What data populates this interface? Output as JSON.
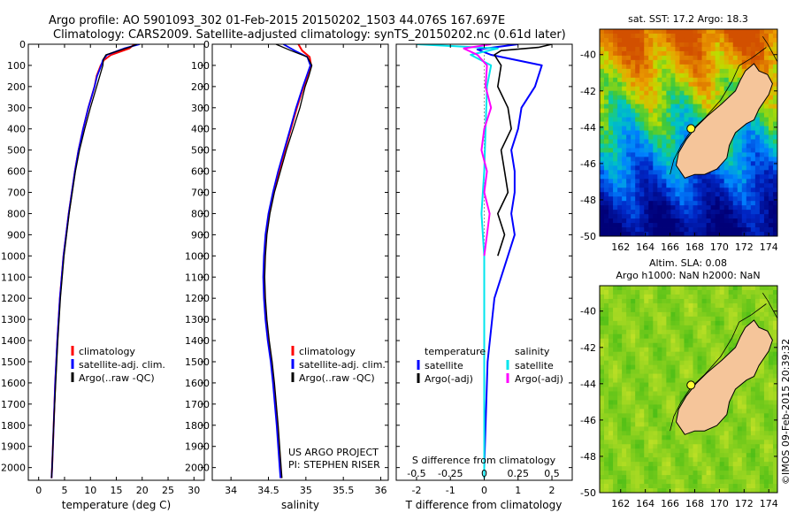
{
  "header": {
    "line1": "Argo profile: AO 5901093_302 01-Feb-2015 20150202_1503 44.076S 167.697E",
    "line2": "Climatology: CARS2009. Satellite-adjusted climatology: synTS_20150202.nc (0.61d later)"
  },
  "credit": {
    "line1": "US ARGO PROJECT",
    "line2": "PI: STEPHEN RISER"
  },
  "watermark": "©IMOS 09-Feb-2015 20:39:32",
  "colors": {
    "climatology": "#ff0000",
    "satellite": "#0000ff",
    "argo": "#000000",
    "sal_satellite": "#00e5ee",
    "sal_argo": "#ff00ff",
    "land": "#f5c59a"
  },
  "depth_axis": {
    "ticks": [
      0,
      100,
      200,
      300,
      400,
      500,
      600,
      700,
      800,
      900,
      1000,
      1100,
      1200,
      1300,
      1400,
      1500,
      1600,
      1700,
      1800,
      1900,
      2000
    ],
    "ylim": [
      0,
      2060
    ],
    "reversed": true
  },
  "chart_data": [
    {
      "type": "line",
      "xlabel": "temperature (deg C)",
      "xlim": [
        -2,
        32
      ],
      "xticks": [
        0,
        5,
        10,
        15,
        20,
        25,
        30
      ],
      "legend": {
        "placement": "lower-center",
        "entries": [
          "climatology",
          "satellite-adj. clim.",
          "Argo(..raw -QC)"
        ]
      },
      "series": [
        {
          "name": "climatology",
          "depth": [
            0,
            20,
            50,
            75,
            100,
            150,
            200,
            300,
            400,
            500,
            600,
            800,
            1000,
            1200,
            1400,
            1600,
            1800,
            2000,
            2050
          ],
          "values": [
            18.5,
            17.5,
            14.0,
            12.6,
            12.0,
            11.2,
            10.8,
            9.6,
            8.6,
            7.7,
            7.0,
            5.8,
            4.8,
            4.1,
            3.6,
            3.2,
            2.9,
            2.6,
            2.5
          ]
        },
        {
          "name": "satellite-adj. clim.",
          "depth": [
            0,
            20,
            50,
            75,
            100,
            150,
            200,
            300,
            400,
            500,
            600,
            800,
            1000,
            1200,
            1400,
            1600,
            1800,
            2000,
            2050
          ],
          "values": [
            19.5,
            16.5,
            13.2,
            12.4,
            12.1,
            11.3,
            10.8,
            9.6,
            8.6,
            7.7,
            7.0,
            5.8,
            4.8,
            4.1,
            3.6,
            3.2,
            2.9,
            2.6,
            2.5
          ]
        },
        {
          "name": "Argo(..raw -QC)",
          "depth": [
            0,
            10,
            30,
            50,
            70,
            100,
            150,
            200,
            300,
            400,
            500,
            600,
            800,
            1000,
            1200,
            1400,
            1600,
            1800,
            2000,
            2050
          ],
          "values": [
            19.0,
            18.0,
            15.5,
            13.0,
            12.5,
            12.4,
            11.8,
            11.2,
            10.0,
            8.9,
            7.9,
            7.1,
            5.9,
            4.9,
            4.2,
            3.7,
            3.3,
            2.9,
            2.6,
            2.5
          ]
        }
      ]
    },
    {
      "type": "line",
      "xlabel": "salinity",
      "xlim": [
        33.75,
        36.1
      ],
      "xticks": [
        34,
        34.5,
        35,
        35.5,
        36
      ],
      "legend": {
        "placement": "lower-right",
        "entries": [
          "climatology",
          "satellite-adj. clim.",
          "Argo(..raw -QC)"
        ]
      },
      "series": [
        {
          "name": "climatology",
          "depth": [
            0,
            30,
            60,
            100,
            150,
            200,
            300,
            400,
            500,
            600,
            700,
            800,
            900,
            1000,
            1100,
            1200,
            1300,
            1400,
            1500,
            1600,
            1800,
            2000,
            2050
          ],
          "values": [
            34.9,
            34.95,
            35.05,
            35.07,
            35.02,
            34.97,
            34.88,
            34.8,
            34.72,
            34.64,
            34.57,
            34.51,
            34.47,
            34.45,
            34.44,
            34.45,
            34.47,
            34.5,
            34.54,
            34.57,
            34.62,
            34.66,
            34.67
          ]
        },
        {
          "name": "satellite-adj. clim.",
          "depth": [
            0,
            30,
            60,
            100,
            150,
            200,
            300,
            400,
            500,
            600,
            700,
            800,
            900,
            1000,
            1100,
            1200,
            1300,
            1400,
            1500,
            1600,
            1800,
            2000,
            2050
          ],
          "values": [
            34.7,
            34.85,
            35.02,
            35.06,
            35.01,
            34.96,
            34.87,
            34.79,
            34.71,
            34.63,
            34.56,
            34.5,
            34.46,
            34.44,
            34.43,
            34.44,
            34.46,
            34.49,
            34.53,
            34.56,
            34.61,
            34.65,
            34.66
          ]
        },
        {
          "name": "Argo(..raw -QC)",
          "depth": [
            0,
            30,
            60,
            100,
            150,
            200,
            300,
            400,
            500,
            600,
            700,
            800,
            900,
            1000,
            1100,
            1200,
            1300,
            1400,
            1500,
            1600,
            1800,
            2000,
            2050
          ],
          "values": [
            34.6,
            34.8,
            35.02,
            35.08,
            35.04,
            34.99,
            34.92,
            34.83,
            34.74,
            34.66,
            34.58,
            34.52,
            34.48,
            34.46,
            34.45,
            34.46,
            34.48,
            34.51,
            34.55,
            34.58,
            34.63,
            34.67,
            34.68
          ]
        }
      ]
    },
    {
      "type": "line",
      "xlabel": "T difference from climatology",
      "xlabel_top": "S difference from climatology",
      "xlim": [
        -2.6,
        2.6
      ],
      "xticks": [
        -2,
        -1,
        0,
        1,
        2
      ],
      "xticks_top": [
        -0.5,
        -0.25,
        0,
        0.25,
        0.5
      ],
      "xticks_top_labels": [
        "-0.5",
        "-0.25",
        "0",
        "0.25",
        "0.5"
      ],
      "legend": {
        "placement": "lower-center",
        "temperature_title": "temperature",
        "salinity_title": "salinity",
        "temperature_entries": [
          "satellite",
          "Argo(-adj)"
        ],
        "salinity_entries": [
          "satellite",
          "Argo(-adj)"
        ]
      },
      "series": [
        {
          "name": "temperature satellite",
          "depth": [
            0,
            25,
            50,
            100,
            200,
            300,
            400,
            500,
            600,
            700,
            800,
            900,
            1000,
            1200,
            1500,
            2000,
            2050
          ],
          "values": [
            1.0,
            -0.2,
            0.2,
            1.7,
            1.5,
            1.1,
            1.0,
            0.8,
            0.9,
            0.9,
            0.8,
            0.9,
            0.7,
            0.3,
            0.1,
            0.0,
            0.0
          ]
        },
        {
          "name": "temperature Argo(-adj)",
          "depth": [
            0,
            15,
            30,
            50,
            100,
            200,
            300,
            400,
            500,
            600,
            700,
            800,
            900,
            1000
          ],
          "values": [
            2.0,
            1.6,
            0.5,
            0.3,
            0.5,
            0.4,
            0.7,
            0.8,
            0.5,
            0.6,
            0.7,
            0.4,
            0.6,
            0.4
          ]
        },
        {
          "name": "salinity satellite",
          "depth": [
            0,
            20,
            50,
            100,
            200,
            400,
            600,
            800,
            1000,
            1500,
            2000,
            2050
          ],
          "values": [
            -0.5,
            0.1,
            -0.1,
            0.05,
            0.02,
            0.01,
            0.0,
            -0.02,
            0.0,
            0.0,
            0.0,
            0.0
          ]
        },
        {
          "name": "salinity Argo(-adj)",
          "depth": [
            0,
            20,
            50,
            100,
            200,
            300,
            400,
            500,
            600,
            700,
            800,
            900,
            1000
          ],
          "values": [
            0.05,
            -0.15,
            -0.05,
            0.02,
            0.01,
            0.05,
            0.0,
            -0.02,
            0.02,
            0.0,
            0.04,
            0.02,
            0.0
          ]
        }
      ]
    },
    {
      "type": "heatmap",
      "title": "sat. SST: 17.2 Argo: 18.3",
      "xticks": [
        162,
        164,
        166,
        168,
        170,
        172,
        174
      ],
      "yticks": [
        -40,
        -42,
        -44,
        -46,
        -48,
        -50
      ],
      "xlim": [
        160.3,
        174.7
      ],
      "ylim": [
        -50,
        -38.6
      ],
      "marker": {
        "lon": 167.697,
        "lat": -44.076
      }
    },
    {
      "type": "heatmap",
      "title": "Altim. SLA: 0.08",
      "subtitle": "Argo h1000: NaN h2000: NaN",
      "xticks": [
        162,
        164,
        166,
        168,
        170,
        172,
        174
      ],
      "yticks": [
        -40,
        -42,
        -44,
        -46,
        -48,
        -50
      ],
      "xlim": [
        160.3,
        174.7
      ],
      "ylim": [
        -50,
        -38.6
      ],
      "marker": {
        "lon": 167.697,
        "lat": -44.076
      }
    }
  ]
}
